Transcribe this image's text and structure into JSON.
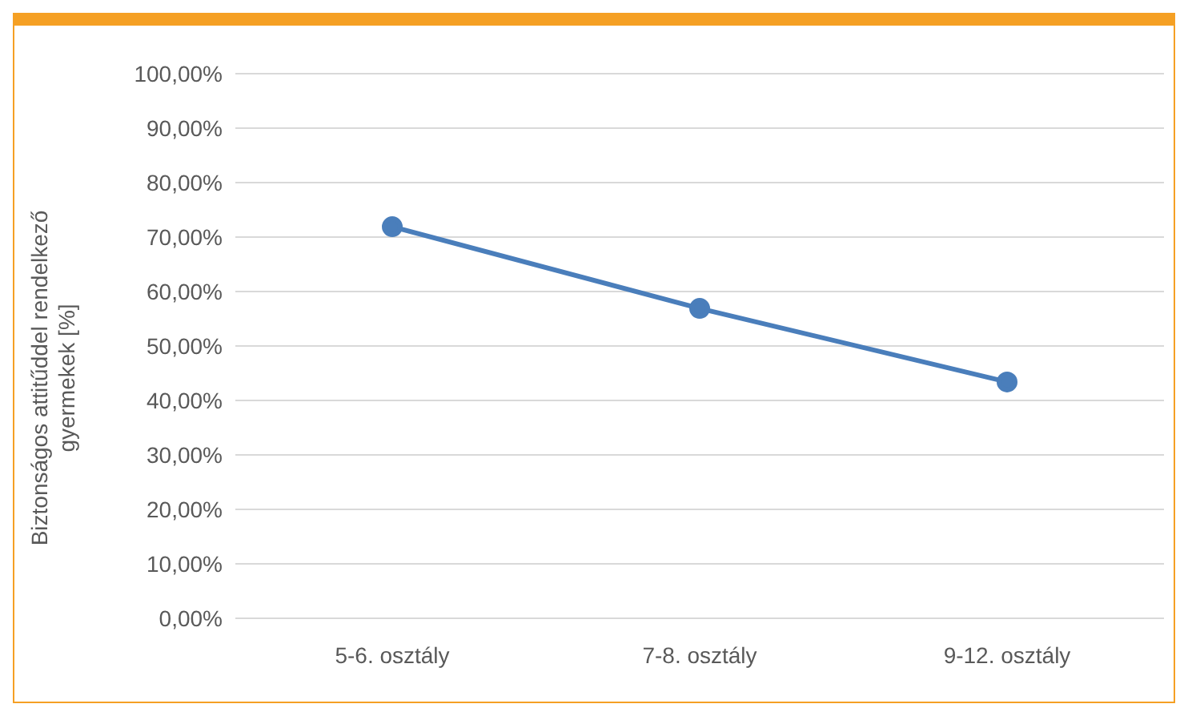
{
  "chart_data": {
    "type": "line",
    "ylabel": "Biztonságos attitűddel rendelkező gyermekek [%]",
    "categories": [
      "5-6. osztály",
      "7-8. osztály",
      "9-12. osztály"
    ],
    "series": [
      {
        "color": "#4a7ebb",
        "values": [
          71.9,
          56.9,
          43.4
        ]
      }
    ],
    "ylim": [
      0,
      100
    ],
    "yticks": [
      {
        "value": 0,
        "label": "0,00%"
      },
      {
        "value": 10,
        "label": "10,00%"
      },
      {
        "value": 20,
        "label": "20,00%"
      },
      {
        "value": 30,
        "label": "30,00%"
      },
      {
        "value": 40,
        "label": "40,00%"
      },
      {
        "value": 50,
        "label": "50,00%"
      },
      {
        "value": 60,
        "label": "60,00%"
      },
      {
        "value": 70,
        "label": "70,00%"
      },
      {
        "value": 80,
        "label": "80,00%"
      },
      {
        "value": 90,
        "label": "90,00%"
      },
      {
        "value": 100,
        "label": "100,00%"
      }
    ],
    "grid": "y",
    "marker": "circle",
    "line_style": "solid",
    "legend": false
  }
}
